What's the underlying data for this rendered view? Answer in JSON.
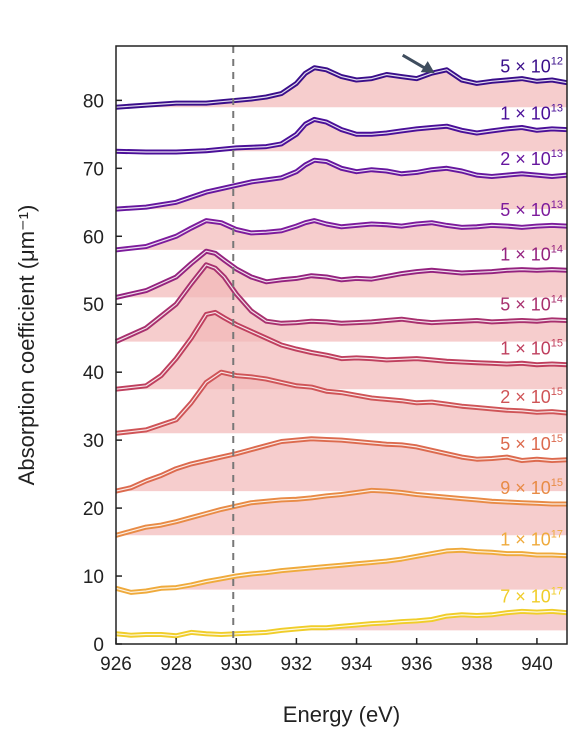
{
  "chart_data": {
    "type": "line",
    "title": "",
    "xlabel": "Energy (eV)",
    "ylabel": "Absorption coefficient (μm⁻¹)",
    "xlim": [
      926,
      941
    ],
    "ylim": [
      0,
      88
    ],
    "x_ticks": [
      926,
      928,
      930,
      932,
      934,
      936,
      938,
      940
    ],
    "y_ticks": [
      0,
      10,
      20,
      30,
      40,
      50,
      60,
      70,
      80
    ],
    "reference_line": {
      "x": 929.9,
      "style": "dashed",
      "color": "#777777"
    },
    "arrow": {
      "label": "",
      "points_to": {
        "x": 936.6,
        "y": 84
      },
      "color": "#3f4d5e"
    },
    "shading": {
      "positive_color": "#f2b8b8",
      "negative_color": "#b4cfe4"
    },
    "series": [
      {
        "name": "5 × 10^12",
        "label_base": "5 × 10",
        "label_exp": "12",
        "color": "#3a0e8a",
        "offset": 79,
        "x": [
          926,
          927,
          928,
          929,
          929.5,
          930,
          930.5,
          931,
          931.5,
          932,
          932.3,
          932.6,
          933,
          933.5,
          934,
          934.5,
          935,
          935.5,
          936,
          936.5,
          937,
          937.5,
          938,
          938.5,
          939,
          939.5,
          940,
          940.5,
          941
        ],
        "values": [
          79,
          79.3,
          79.6,
          79.6,
          79.8,
          80,
          80.2,
          80.5,
          81,
          82.5,
          84,
          84.8,
          84.5,
          83.5,
          83,
          83.2,
          83.8,
          83.5,
          83.2,
          84,
          84.5,
          83,
          82.5,
          82.8,
          83,
          83.2,
          82.8,
          83,
          82.6
        ]
      },
      {
        "name": "1 × 10^13",
        "label_base": "1 × 10",
        "label_exp": "13",
        "color": "#4a0f98",
        "offset": 72.5,
        "x": [
          926,
          927,
          928,
          929,
          930,
          930.5,
          931,
          931.5,
          932,
          932.3,
          932.6,
          933,
          933.5,
          934,
          934.5,
          935,
          935.5,
          936,
          936.5,
          937,
          937.5,
          938,
          938.5,
          939,
          939.5,
          940,
          940.5,
          941
        ],
        "values": [
          72.5,
          72.4,
          72.4,
          72.6,
          73,
          73.1,
          73.2,
          73.6,
          75,
          76.5,
          77.2,
          76.8,
          75.7,
          75,
          75,
          75.2,
          75.5,
          75.8,
          76,
          76.2,
          75.6,
          75.2,
          75.5,
          75.8,
          76,
          75.6,
          75.8,
          75.7
        ]
      },
      {
        "name": "2 × 10^13",
        "label_base": "2 × 10",
        "label_exp": "13",
        "color": "#66169e",
        "offset": 64,
        "x": [
          926,
          927,
          928,
          929,
          930,
          930.5,
          931,
          931.5,
          932,
          932.3,
          932.6,
          933,
          933.5,
          934,
          934.5,
          935,
          935.5,
          936,
          936.5,
          937,
          937.5,
          938,
          938.5,
          939,
          939.5,
          940,
          940.5,
          941
        ],
        "values": [
          64,
          64.3,
          65,
          66.5,
          67.5,
          68,
          68.3,
          68.6,
          69.5,
          70.5,
          71.2,
          71,
          70,
          69.5,
          69.8,
          69.6,
          69.2,
          69.4,
          69.8,
          70,
          69.6,
          69,
          68.8,
          69,
          69.2,
          69,
          68.8,
          69
        ]
      },
      {
        "name": "5 × 10^13",
        "label_base": "5 × 10",
        "label_exp": "13",
        "color": "#7d1b9c",
        "offset": 58,
        "x": [
          926,
          927,
          928,
          928.5,
          929,
          929.5,
          930,
          930.5,
          931,
          931.5,
          932,
          932.3,
          932.6,
          933,
          933.5,
          934,
          934.5,
          935,
          935.5,
          936,
          936.5,
          937,
          937.5,
          938,
          938.5,
          939,
          939.5,
          940,
          940.5,
          941
        ],
        "values": [
          58,
          58.5,
          60,
          61.2,
          62.3,
          62,
          61,
          60.5,
          60.6,
          60.8,
          61.5,
          62,
          62.3,
          61.8,
          61.4,
          61.6,
          61.8,
          61.7,
          61.5,
          61.8,
          62,
          61.6,
          61.3,
          61.4,
          61.6,
          61.5,
          61.3,
          61.5,
          61.6,
          61.5
        ]
      },
      {
        "name": "1 × 10^14",
        "label_base": "1 × 10",
        "label_exp": "14",
        "color": "#94227f",
        "offset": 51,
        "x": [
          926,
          927,
          928,
          928.5,
          929,
          929.3,
          929.6,
          930,
          930.5,
          931,
          931.5,
          932,
          932.5,
          933,
          933.5,
          934,
          934.5,
          935,
          935.5,
          936,
          936.5,
          937,
          937.5,
          938,
          938.5,
          939,
          939.5,
          940,
          940.5,
          941
        ],
        "values": [
          51,
          52,
          54,
          56,
          57.8,
          57.5,
          56.5,
          55.2,
          54,
          53.3,
          53.6,
          53.8,
          54.2,
          54,
          53.6,
          53.8,
          53.7,
          54.1,
          54.5,
          54.8,
          55,
          54.8,
          54.6,
          54.7,
          54.8,
          55,
          55.1,
          55,
          55.1,
          55
        ]
      },
      {
        "name": "5 × 10^14",
        "label_base": "5 × 10",
        "label_exp": "14",
        "color": "#a8306e",
        "offset": 44.5,
        "x": [
          926,
          927,
          928,
          928.5,
          929,
          929.3,
          929.6,
          930,
          930.5,
          931,
          931.5,
          932,
          932.5,
          933,
          933.5,
          934,
          934.5,
          935,
          935.5,
          936,
          936.5,
          937,
          937.5,
          938,
          938.5,
          939,
          939.5,
          940,
          940.5,
          941
        ],
        "values": [
          44.5,
          46.5,
          50,
          53,
          55.8,
          55.3,
          54,
          51.5,
          49,
          47.5,
          47.2,
          47.3,
          47.5,
          47.4,
          47.2,
          47.3,
          47.4,
          47.6,
          47.8,
          47.5,
          47.3,
          47.4,
          47.5,
          47.6,
          47.4,
          47.5,
          47.6,
          47.5,
          47.7,
          47.6
        ]
      },
      {
        "name": "1 × 10^15",
        "label_base": "1 × 10",
        "label_exp": "15",
        "color": "#bf3f5e",
        "offset": 37.5,
        "x": [
          926,
          927,
          927.5,
          928,
          928.5,
          929,
          929.3,
          929.6,
          930,
          930.5,
          931,
          931.5,
          932,
          932.5,
          933,
          933.5,
          934,
          934.5,
          935,
          935.5,
          936,
          936.5,
          937,
          937.5,
          938,
          938.5,
          939,
          939.5,
          940,
          940.5,
          941
        ],
        "values": [
          37.5,
          38,
          39.5,
          42,
          45,
          48.5,
          48.8,
          48,
          47,
          46,
          45,
          44,
          43.4,
          42.9,
          42.5,
          42,
          42.1,
          42,
          41.8,
          41.9,
          42,
          41.8,
          41.6,
          41.5,
          41.4,
          41.3,
          41.2,
          41.3,
          41.1,
          41.2,
          41.1
        ]
      },
      {
        "name": "2 × 10^15",
        "label_base": "2 × 10",
        "label_exp": "15",
        "color": "#cf5457",
        "offset": 31,
        "x": [
          926,
          927,
          928,
          928.5,
          929,
          929.5,
          930,
          930.5,
          931,
          931.5,
          932,
          932.5,
          933,
          933.5,
          934,
          934.5,
          935,
          935.5,
          936,
          936.5,
          937,
          937.5,
          938,
          938.5,
          939,
          939.5,
          940,
          940.5,
          941
        ],
        "values": [
          31,
          31.5,
          33,
          35.5,
          38.5,
          40,
          39.5,
          39.3,
          39,
          38.5,
          38,
          37.8,
          37.2,
          37,
          36.6,
          36.2,
          36,
          35.8,
          35.5,
          35.6,
          35.3,
          35,
          34.8,
          34.6,
          34.4,
          34.3,
          34.1,
          34.2,
          34
        ]
      },
      {
        "name": "5 × 10^15",
        "label_base": "5 × 10",
        "label_exp": "15",
        "color": "#dc6a4e",
        "offset": 22.5,
        "x": [
          926,
          926.5,
          927,
          927.5,
          928,
          928.5,
          929,
          929.5,
          930,
          930.5,
          931,
          931.5,
          932,
          932.5,
          933,
          933.5,
          934,
          934.5,
          935,
          935.5,
          936,
          936.5,
          937,
          937.5,
          938,
          938.5,
          939,
          939.5,
          940,
          940.5,
          941
        ],
        "values": [
          22.5,
          23,
          24,
          24.8,
          25.8,
          26.5,
          27,
          27.5,
          28,
          28.6,
          29.2,
          29.8,
          30,
          30.2,
          30.1,
          30,
          29.8,
          29.6,
          29.4,
          29.3,
          29,
          28.5,
          28,
          27.5,
          27.2,
          27.3,
          27.5,
          27,
          27.2,
          27,
          27.1
        ]
      },
      {
        "name": "9 × 10^15",
        "label_base": "9 × 10",
        "label_exp": "15",
        "color": "#e88b46",
        "offset": 16,
        "x": [
          926,
          926.5,
          927,
          927.5,
          928,
          928.5,
          929,
          929.5,
          930,
          930.5,
          931,
          931.5,
          932,
          932.5,
          933,
          933.5,
          934,
          934.5,
          935,
          935.5,
          936,
          936.5,
          937,
          937.5,
          938,
          938.5,
          939,
          939.5,
          940,
          940.5,
          941
        ],
        "values": [
          16,
          16.6,
          17.2,
          17.5,
          18,
          18.6,
          19.2,
          19.8,
          20.3,
          20.8,
          21,
          21.2,
          21.3,
          21.5,
          21.8,
          22,
          22.3,
          22.6,
          22.5,
          22.3,
          22,
          21.8,
          21.6,
          21.4,
          21.2,
          21,
          20.9,
          20.8,
          20.7,
          20.6,
          20.6
        ]
      },
      {
        "name": "1 × 10^17",
        "label_base": "1 × 10",
        "label_exp": "17",
        "color": "#efaa3c",
        "offset": 8,
        "x": [
          926,
          926.5,
          927,
          927.5,
          928,
          928.5,
          929,
          929.5,
          930,
          930.5,
          931,
          931.5,
          932,
          932.5,
          933,
          933.5,
          934,
          934.5,
          935,
          935.5,
          936,
          936.5,
          937,
          937.5,
          938,
          938.5,
          939,
          939.5,
          940,
          940.5,
          941
        ],
        "values": [
          8.2,
          7.6,
          7.8,
          8.2,
          8.3,
          8.7,
          9.2,
          9.6,
          10,
          10.3,
          10.5,
          10.8,
          11,
          11.2,
          11.4,
          11.6,
          11.8,
          12,
          12.2,
          12.5,
          12.9,
          13.3,
          13.7,
          13.8,
          13.6,
          13.5,
          13.3,
          13.3,
          13.1,
          13.1,
          13
        ]
      },
      {
        "name": "7 × 10^17",
        "label_base": "7 × 10",
        "label_exp": "17",
        "color": "#f0cd2a",
        "offset": 2,
        "x": [
          926,
          926.5,
          927,
          927.5,
          928,
          928.5,
          929,
          929.5,
          930,
          930.5,
          931,
          931.5,
          932,
          932.5,
          933,
          933.5,
          934,
          934.5,
          935,
          935.5,
          936,
          936.5,
          937,
          937.5,
          938,
          938.5,
          939,
          939.5,
          940,
          940.5,
          941
        ],
        "values": [
          1.5,
          1.3,
          1.4,
          1.4,
          1.2,
          1.7,
          1.5,
          1.4,
          1.5,
          1.6,
          1.7,
          2,
          2.2,
          2.4,
          2.4,
          2.6,
          2.8,
          3,
          3.1,
          3.3,
          3.4,
          3.6,
          4.1,
          4.3,
          4.2,
          4.3,
          4.6,
          4.8,
          4.7,
          4.8,
          4.6
        ]
      }
    ]
  }
}
